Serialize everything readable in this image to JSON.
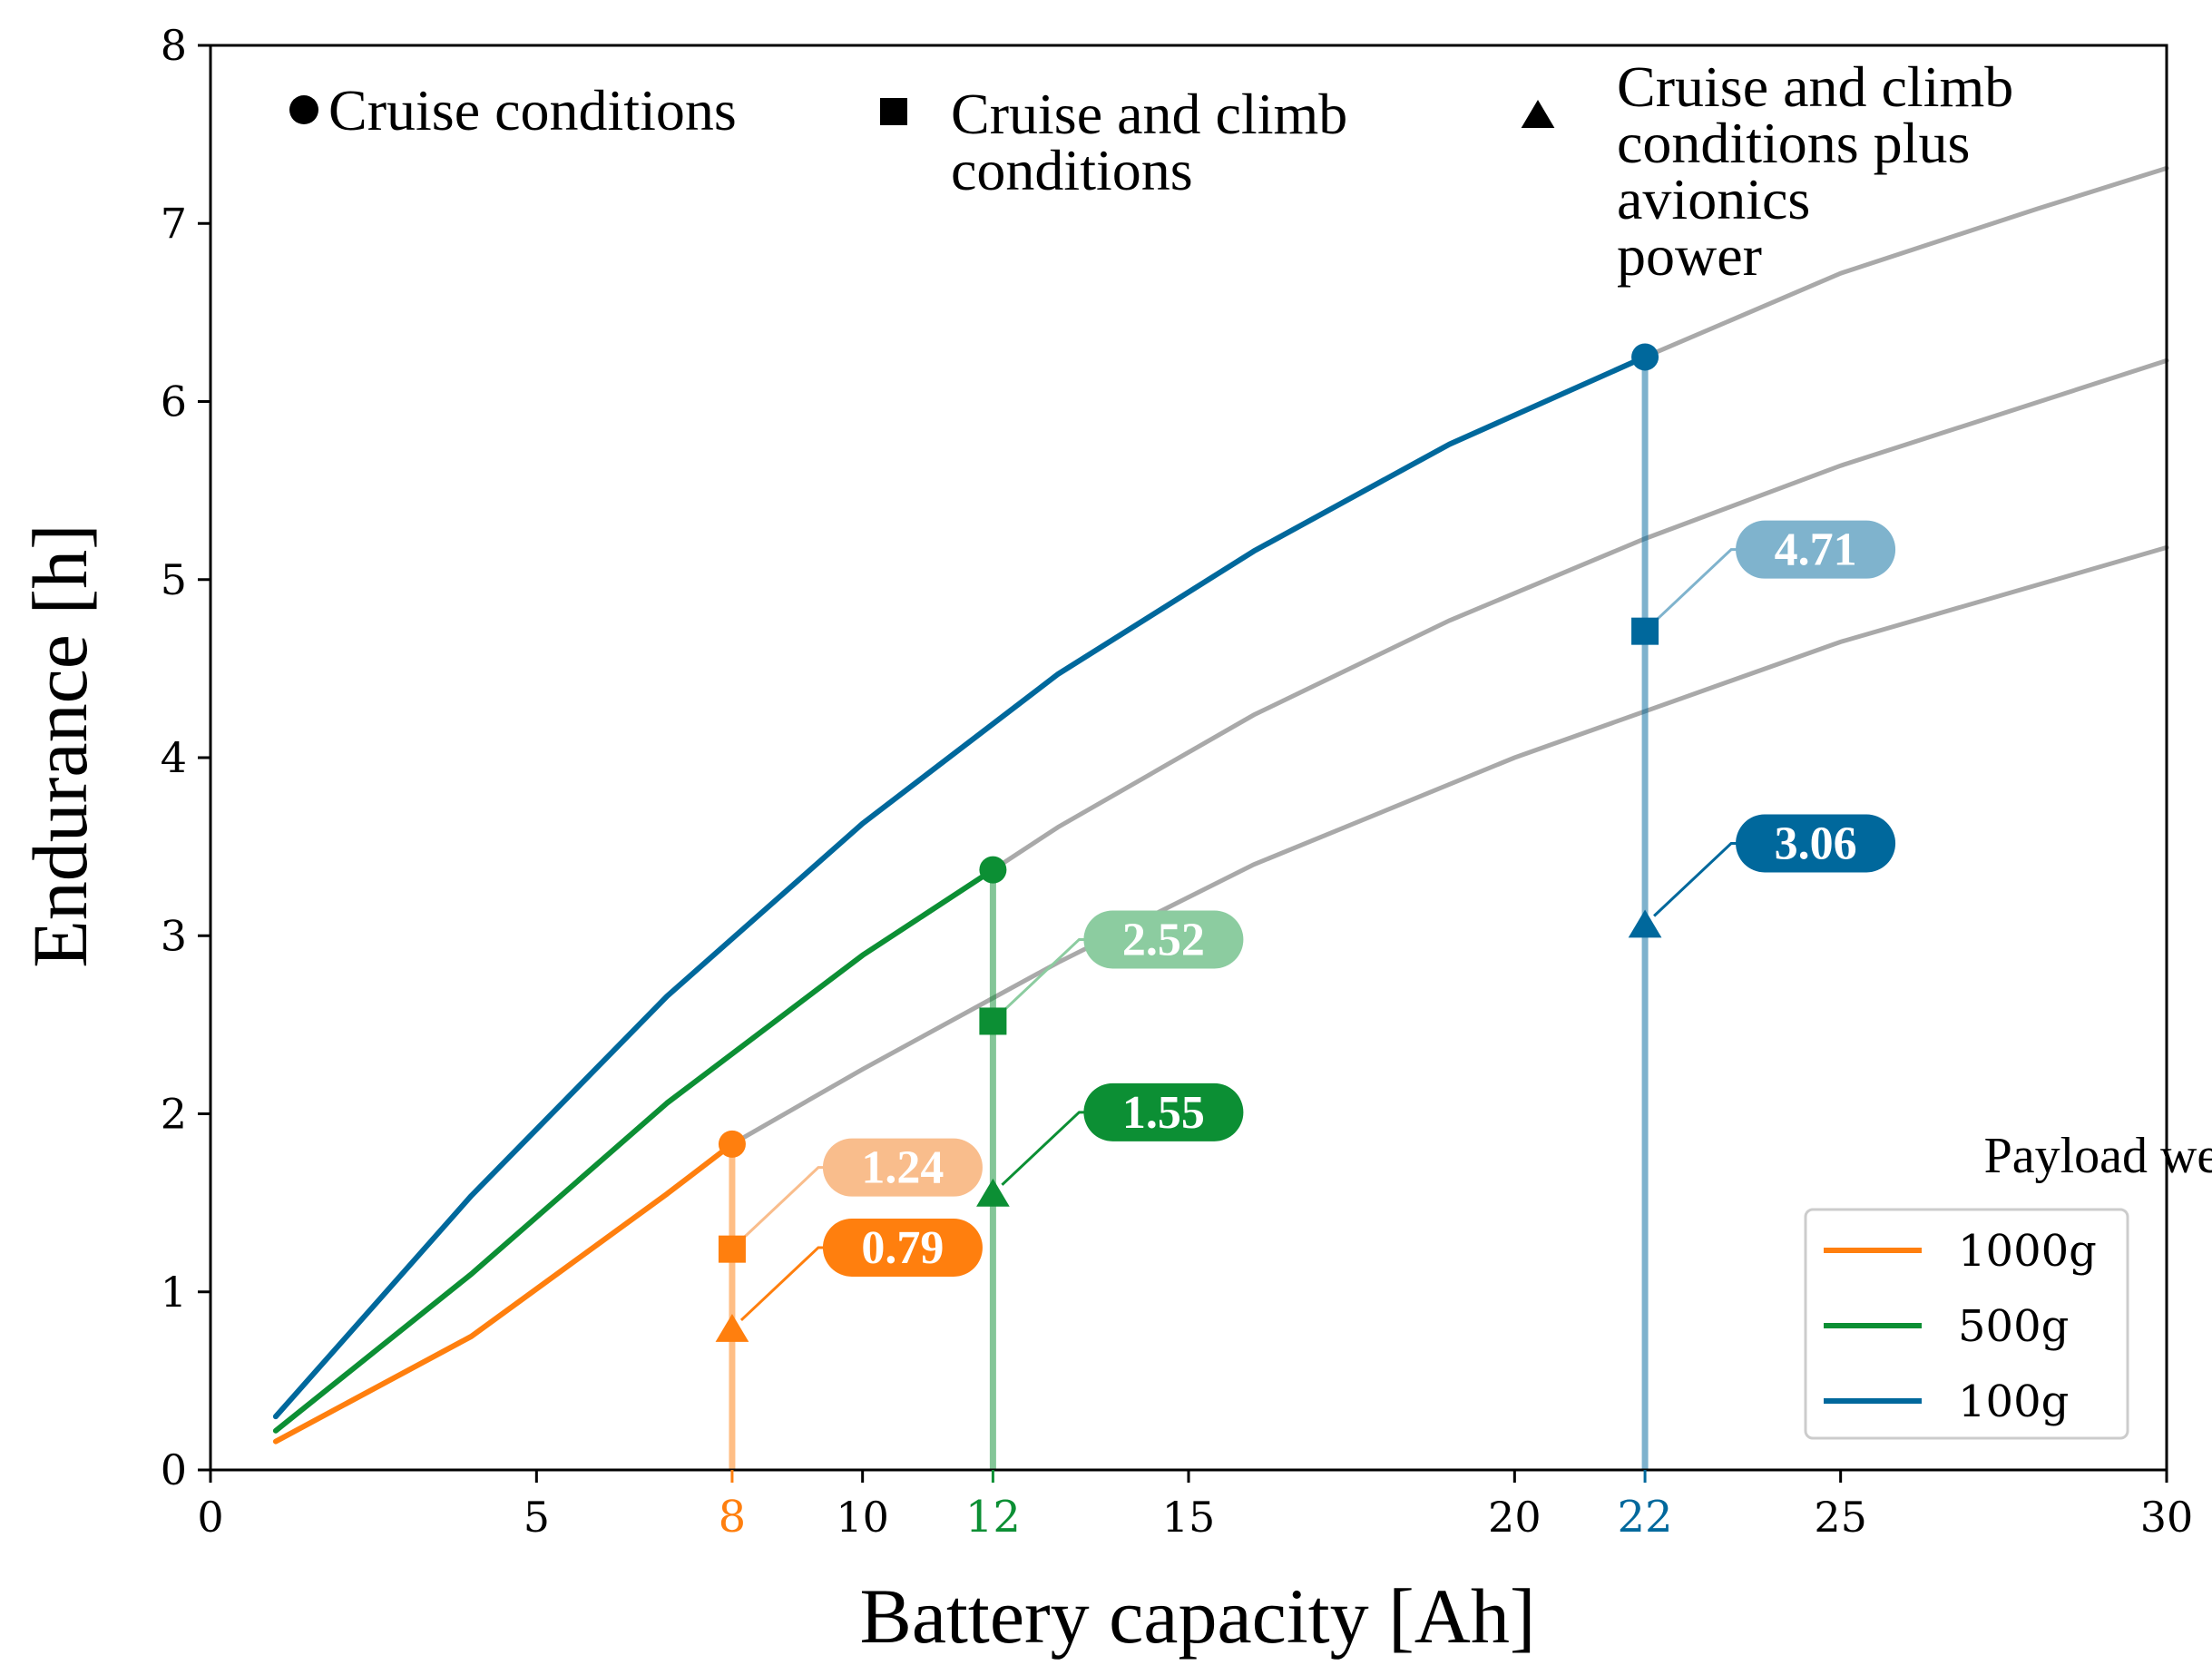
{
  "chart_data": {
    "type": "line",
    "title": "",
    "xlabel": "Battery capacity [Ah]",
    "ylabel": "Endurance [h]",
    "xlim": [
      0,
      30
    ],
    "ylim": [
      0,
      8
    ],
    "xticks": [
      0,
      5,
      10,
      15,
      20,
      25,
      30
    ],
    "yticks": [
      0,
      1,
      2,
      3,
      4,
      5,
      6,
      7,
      8
    ],
    "highlight_ticks": [
      {
        "value": 8,
        "label": "8",
        "color": "#ff7f0e"
      },
      {
        "value": 12,
        "label": "12",
        "color": "#0c8f34"
      },
      {
        "value": 22,
        "label": "22",
        "color": "#00689c"
      }
    ],
    "series": [
      {
        "name": "1000g",
        "color": "#ff7f0e",
        "x": [
          1,
          4,
          7,
          8
        ],
        "values": [
          0.16,
          0.75,
          1.55,
          1.83
        ],
        "extension_x": [
          8,
          10,
          13,
          16,
          20,
          25,
          30
        ],
        "extension_values": [
          1.83,
          2.25,
          2.85,
          3.4,
          4.0,
          4.65,
          5.18
        ],
        "selected_capacity": 8,
        "cruise": 1.83,
        "cruise_climb": 1.24,
        "cruise_climb_avionics": 0.79
      },
      {
        "name": "500g",
        "color": "#0c8f34",
        "x": [
          1,
          4,
          7,
          10,
          12
        ],
        "values": [
          0.22,
          1.1,
          2.06,
          2.89,
          3.37
        ],
        "extension_x": [
          12,
          13,
          16,
          19,
          22,
          25,
          30
        ],
        "extension_values": [
          3.37,
          3.61,
          4.24,
          4.77,
          5.23,
          5.64,
          6.23
        ],
        "selected_capacity": 12,
        "cruise": 3.37,
        "cruise_climb": 2.52,
        "cruise_climb_avionics": 1.55
      },
      {
        "name": "100g",
        "color": "#00689c",
        "x": [
          1,
          4,
          7,
          10,
          13,
          16,
          19,
          22
        ],
        "values": [
          0.3,
          1.54,
          2.66,
          3.63,
          4.47,
          5.16,
          5.76,
          6.25
        ],
        "extension_x": [
          22,
          25,
          28,
          30
        ],
        "extension_values": [
          6.25,
          6.72,
          7.08,
          7.31
        ],
        "selected_capacity": 22,
        "cruise": 6.25,
        "cruise_climb": 4.71,
        "cruise_climb_avionics": 3.06
      }
    ],
    "marker_legend": [
      {
        "symbol": "circle",
        "lines": [
          "Cruise conditions"
        ]
      },
      {
        "symbol": "square",
        "lines": [
          "Cruise and climb",
          "conditions"
        ]
      },
      {
        "symbol": "triangle",
        "lines": [
          "Cruise and climb",
          "conditions plus",
          "avionics",
          "power"
        ]
      }
    ],
    "legend": {
      "title": "Payload weight",
      "position": "lower-right",
      "entries": [
        "1000g",
        "500g",
        "100g"
      ]
    },
    "callouts": [
      {
        "series": "1000g",
        "kind": "cruise_climb",
        "label": "1.24",
        "color": "#f9bd8c"
      },
      {
        "series": "1000g",
        "kind": "cruise_climb_avionics",
        "label": "0.79",
        "color": "#ff7f0e"
      },
      {
        "series": "500g",
        "kind": "cruise_climb",
        "label": "2.52",
        "color": "#8ccca0"
      },
      {
        "series": "500g",
        "kind": "cruise_climb_avionics",
        "label": "1.55",
        "color": "#0c8f34"
      },
      {
        "series": "100g",
        "kind": "cruise_climb",
        "label": "4.71",
        "color": "#7fb3cd"
      },
      {
        "series": "100g",
        "kind": "cruise_climb_avionics",
        "label": "3.06",
        "color": "#00689c"
      }
    ]
  }
}
